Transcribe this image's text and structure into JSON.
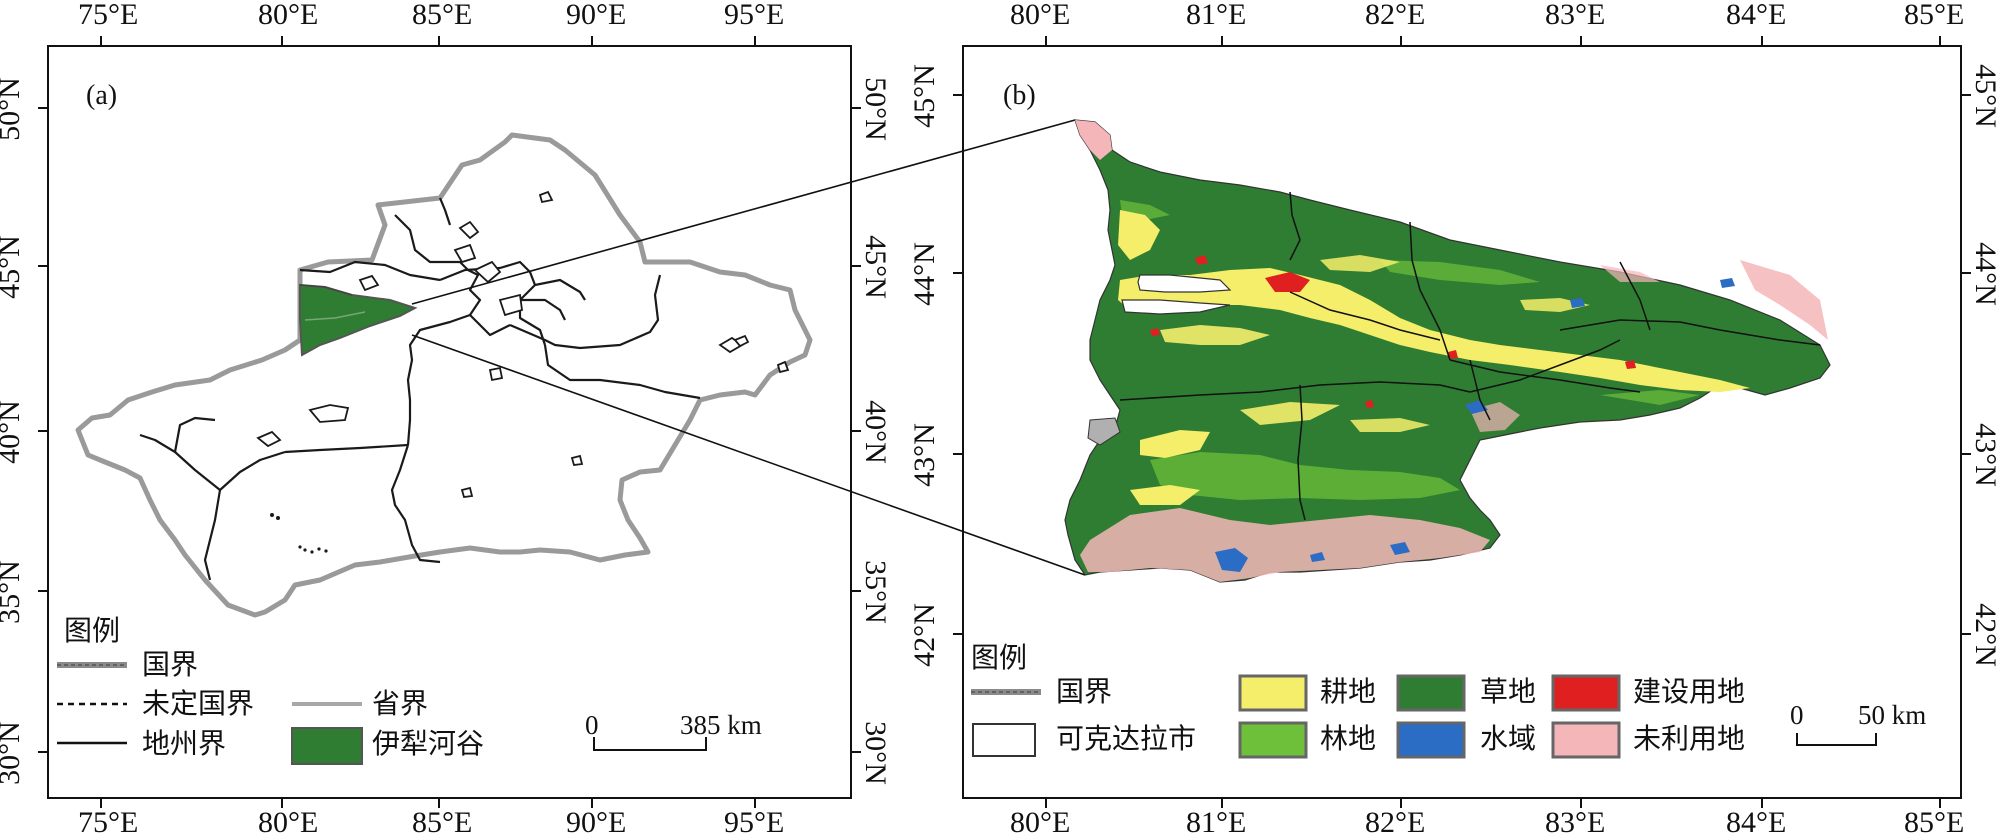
{
  "panel_a": {
    "label": "(a)",
    "top_ticks": [
      "75°E",
      "80°E",
      "85°E",
      "90°E",
      "95°E"
    ],
    "bottom_ticks": [
      "75°E",
      "80°E",
      "85°E",
      "90°E",
      "95°E"
    ],
    "left_ticks": [
      "50°N",
      "45°N",
      "40°N",
      "35°N",
      "30°N"
    ],
    "right_ticks": [
      "50°N",
      "45°N",
      "40°N",
      "35°N",
      "30°N"
    ],
    "legend": {
      "title": "图例",
      "items": [
        "国界",
        "未定国界",
        "地州界",
        "省界",
        "伊犁河谷"
      ]
    },
    "scale": {
      "zero": "0",
      "value": "385 km"
    }
  },
  "panel_b": {
    "label": "(b)",
    "top_ticks": [
      "80°E",
      "81°E",
      "82°E",
      "83°E",
      "84°E",
      "85°E"
    ],
    "bottom_ticks": [
      "80°E",
      "81°E",
      "82°E",
      "83°E",
      "84°E",
      "85°E"
    ],
    "left_ticks": [
      "45°N",
      "44°N",
      "43°N",
      "42°N"
    ],
    "right_ticks": [
      "45°N",
      "44°N",
      "43°N",
      "42°N"
    ],
    "legend": {
      "title": "图例",
      "boundary_items": [
        "国界",
        "可克达拉市"
      ],
      "land_items": [
        {
          "label": "耕地",
          "color": "#f4ee6a"
        },
        {
          "label": "林地",
          "color": "#6ebf3a"
        },
        {
          "label": "草地",
          "color": "#2e7d32"
        },
        {
          "label": "水域",
          "color": "#2b6cc4"
        },
        {
          "label": "建设用地",
          "color": "#e02020"
        },
        {
          "label": "未利用地",
          "color": "#f5b6b9"
        }
      ]
    },
    "scale": {
      "zero": "0",
      "value": "50 km"
    }
  },
  "colors": {
    "ili_valley": "#2e7d32",
    "national_border": "#9a9a9a",
    "province_border": "#a8a8a8",
    "prefecture_border": "#1a1a1a"
  }
}
